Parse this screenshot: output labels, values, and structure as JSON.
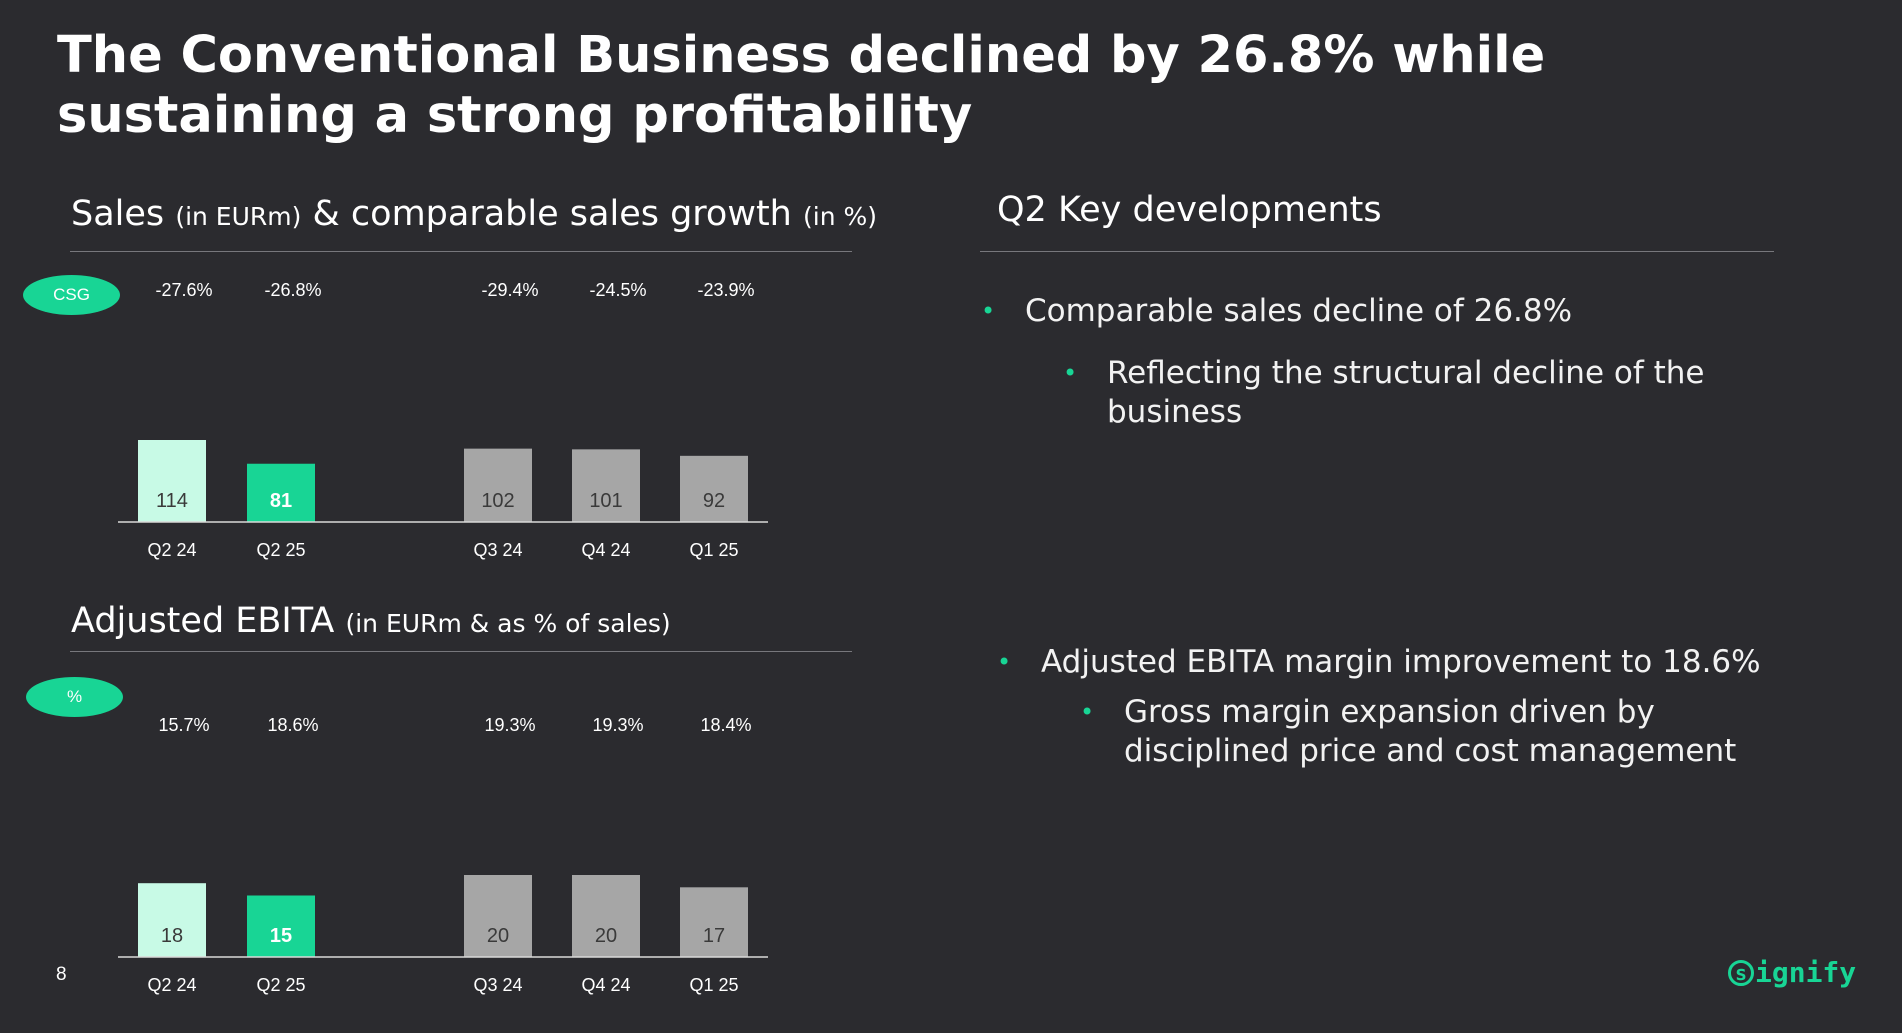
{
  "title": "The Conventional Business declined by 26.8% while sustaining a strong profitability",
  "sales_section": {
    "title": "Sales",
    "sub1": "(in EURm)",
    "mid": "& comparable sales growth",
    "sub2": "(in %)",
    "badge": "CSG"
  },
  "ebita_section": {
    "title": "Adjusted EBITA",
    "sub": "(in EURm & as % of sales)",
    "badge": "%"
  },
  "key_dev": {
    "title": "Q2 Key developments",
    "bullets": [
      {
        "text": "Comparable sales decline of 26.8%",
        "sub": "Reflecting the structural decline of the business"
      },
      {
        "text": "Adjusted EBITA margin improvement to 18.6%",
        "sub": "Gross margin expansion driven by disciplined price and cost management"
      }
    ]
  },
  "page_number": "8",
  "logo": {
    "mark": "s",
    "text": "ignify"
  },
  "colors": {
    "highlight": "#18d595",
    "prior_year": "#c8fae6",
    "other_quarters": "#a6a6a6",
    "background": "#2b2b2f"
  },
  "chart_data": [
    {
      "type": "bar",
      "categories": [
        "Q2 24",
        "Q2 25",
        "Q3 24",
        "Q4 24",
        "Q1 25"
      ],
      "values": [
        114,
        81,
        102,
        101,
        92
      ],
      "annotations": [
        "-27.6%",
        "-26.8%",
        "-29.4%",
        "-24.5%",
        "-23.9%"
      ],
      "ylim": [
        0,
        114
      ]
    },
    {
      "type": "bar",
      "categories": [
        "Q2 24",
        "Q2 25",
        "Q3 24",
        "Q4 24",
        "Q1 25"
      ],
      "values": [
        18,
        15,
        20,
        20,
        17
      ],
      "annotations": [
        "15.7%",
        "18.6%",
        "19.3%",
        "19.3%",
        "18.4%"
      ],
      "ylim": [
        0,
        20
      ]
    }
  ]
}
